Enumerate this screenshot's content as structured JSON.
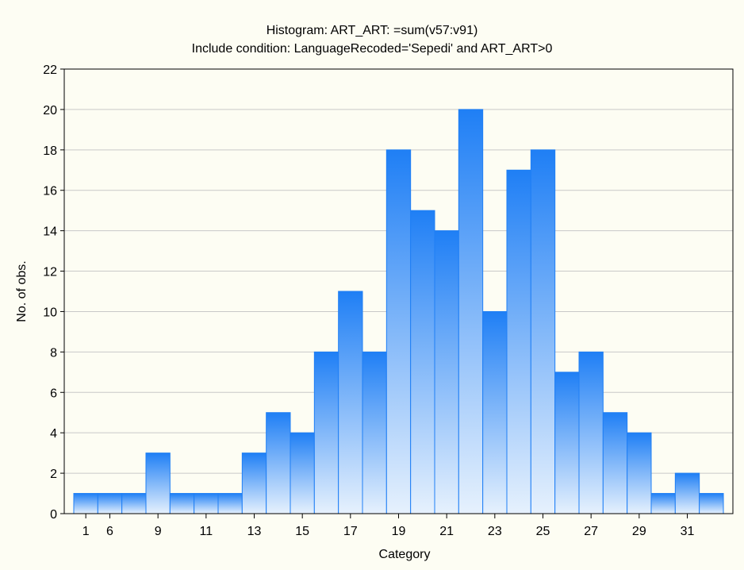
{
  "chart_data": {
    "type": "bar",
    "title": "Histogram: ART_ART: =sum(v57:v91)",
    "subtitle": "Include condition: LanguageRecoded='Sepedi' and ART_ART>0",
    "xlabel": "Category",
    "ylabel": "No. of obs.",
    "ylim": [
      0,
      22
    ],
    "yticks": [
      "0",
      "2",
      "4",
      "6",
      "8",
      "10",
      "12",
      "14",
      "16",
      "18",
      "20",
      "22"
    ],
    "xticks": [
      "1",
      "6",
      "9",
      "11",
      "13",
      "15",
      "17",
      "19",
      "21",
      "23",
      "25",
      "27",
      "29",
      "31"
    ],
    "grid": true,
    "bar_color": "#1f7ff5",
    "values": [
      1,
      1,
      1,
      3,
      1,
      1,
      1,
      3,
      5,
      4,
      8,
      11,
      8,
      18,
      15,
      14,
      20,
      10,
      17,
      18,
      7,
      8,
      5,
      4,
      1,
      2,
      1
    ]
  }
}
